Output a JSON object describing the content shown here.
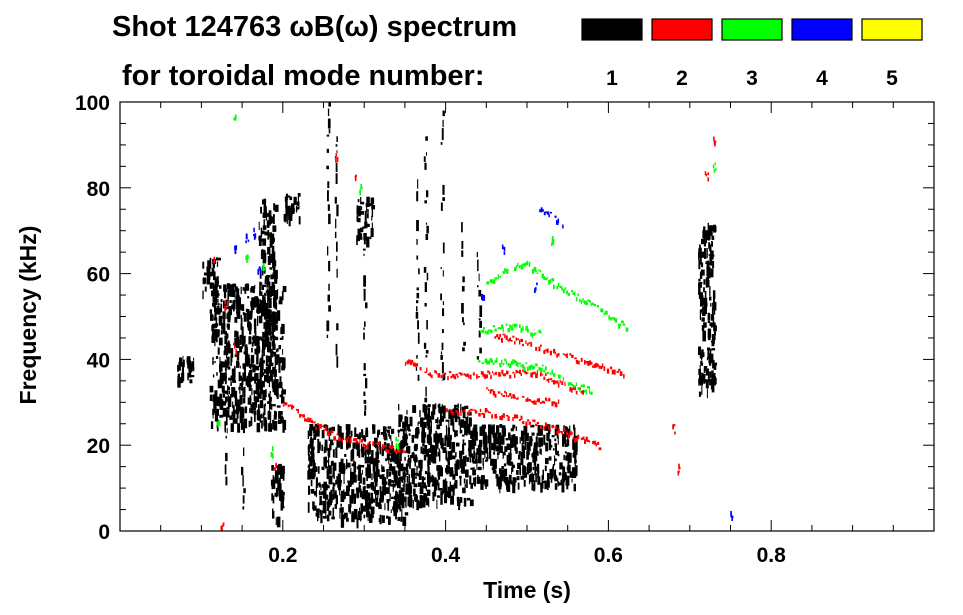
{
  "chart_data": {
    "type": "heatmap",
    "title": "Shot 124763 ωB(ω) spectrum",
    "subtitle": "for toroidal mode number:",
    "xlabel": "Time (s)",
    "ylabel": "Frequency (kHz)",
    "xlim": [
      0.0,
      1.0
    ],
    "ylim": [
      0,
      100
    ],
    "x_ticks": [
      0.2,
      0.4,
      0.6,
      0.8
    ],
    "x_tick_labels": [
      "0.2",
      "0.4",
      "0.6",
      "0.8"
    ],
    "y_ticks": [
      0,
      20,
      40,
      60,
      80,
      100
    ],
    "y_tick_labels": [
      "0",
      "20",
      "40",
      "60",
      "80",
      "100"
    ],
    "grid": false,
    "legend_placement": "top-right",
    "legend": [
      {
        "label": "1",
        "color": "#000000"
      },
      {
        "label": "2",
        "color": "#ff0000"
      },
      {
        "label": "3",
        "color": "#00ff00"
      },
      {
        "label": "4",
        "color": "#0000ff"
      },
      {
        "label": "5",
        "color": "#ffff00"
      }
    ],
    "series": [
      {
        "mode": 1,
        "color": "#000000",
        "blobs": [
          {
            "t": [
              0.07,
              0.09
            ],
            "f": [
              35,
              41
            ]
          },
          {
            "t": [
              0.1,
              0.12
            ],
            "f": [
              56,
              64
            ]
          },
          {
            "t": [
              0.11,
              0.2
            ],
            "f": [
              25,
              58
            ]
          },
          {
            "t": [
              0.17,
              0.19
            ],
            "f": [
              44,
              78
            ]
          },
          {
            "t": [
              0.185,
              0.2
            ],
            "f": [
              3,
              16
            ]
          },
          {
            "t": [
              0.2,
              0.22
            ],
            "f": [
              73,
              79
            ]
          },
          {
            "t": [
              0.23,
              0.35
            ],
            "f": [
              3,
              25
            ]
          },
          {
            "t": [
              0.29,
              0.31
            ],
            "f": [
              68,
              78
            ]
          },
          {
            "t": [
              0.34,
              0.43
            ],
            "f": [
              7,
              30
            ]
          },
          {
            "t": [
              0.43,
              0.56
            ],
            "f": [
              11,
              25
            ]
          },
          {
            "t": [
              0.71,
              0.73
            ],
            "f": [
              32,
              72
            ]
          }
        ],
        "streaks": [
          {
            "t": 0.255,
            "f": [
              45,
              100
            ]
          },
          {
            "t": 0.265,
            "f": [
              38,
              92
            ]
          },
          {
            "t": 0.365,
            "f": [
              30,
              82
            ]
          },
          {
            "t": 0.375,
            "f": [
              30,
              92
            ]
          },
          {
            "t": 0.395,
            "f": [
              35,
              98
            ]
          },
          {
            "t": 0.42,
            "f": [
              30,
              72
            ]
          },
          {
            "t": 0.44,
            "f": [
              38,
              65
            ]
          },
          {
            "t": 0.3,
            "f": [
              22,
              68
            ]
          },
          {
            "t": 0.15,
            "f": [
              5,
              40
            ]
          },
          {
            "t": 0.13,
            "f": [
              10,
              45
            ]
          }
        ]
      },
      {
        "mode": 2,
        "color": "#ff0000",
        "bands": [
          [
            [
              0.2,
              30
            ],
            [
              0.24,
              25
            ],
            [
              0.27,
              22
            ],
            [
              0.32,
              20
            ],
            [
              0.35,
              18.5
            ]
          ],
          [
            [
              0.35,
              40
            ],
            [
              0.38,
              37
            ],
            [
              0.42,
              36.5
            ],
            [
              0.48,
              37
            ],
            [
              0.51,
              37
            ],
            [
              0.55,
              34
            ],
            [
              0.57,
              32.5
            ]
          ],
          [
            [
              0.45,
              33
            ],
            [
              0.5,
              31
            ],
            [
              0.54,
              30
            ]
          ],
          [
            [
              0.4,
              28
            ],
            [
              0.45,
              28
            ],
            [
              0.5,
              26
            ],
            [
              0.55,
              23
            ],
            [
              0.59,
              20
            ]
          ],
          [
            [
              0.46,
              46
            ],
            [
              0.5,
              44
            ],
            [
              0.55,
              41
            ],
            [
              0.6,
              38
            ],
            [
              0.62,
              37
            ]
          ]
        ],
        "spots": [
          {
            "t": 0.29,
            "f": 83
          },
          {
            "t": 0.14,
            "f": 43
          },
          {
            "t": 0.19,
            "f": 15
          },
          {
            "t": 0.125,
            "f": 2
          },
          {
            "t": 0.72,
            "f": 83
          },
          {
            "t": 0.73,
            "f": 91
          },
          {
            "t": 0.685,
            "f": 15
          },
          {
            "t": 0.68,
            "f": 24
          },
          {
            "t": 0.265,
            "f": 88
          },
          {
            "t": 0.115,
            "f": 63
          },
          {
            "t": 0.13,
            "f": 53
          }
        ]
      },
      {
        "mode": 3,
        "color": "#00ff00",
        "bands": [
          [
            [
              0.45,
              58
            ],
            [
              0.48,
              62
            ],
            [
              0.5,
              62.5
            ],
            [
              0.54,
              57
            ],
            [
              0.58,
              53
            ],
            [
              0.61,
              49
            ],
            [
              0.625,
              47.5
            ]
          ],
          [
            [
              0.44,
              47
            ],
            [
              0.48,
              48
            ],
            [
              0.52,
              46
            ]
          ],
          [
            [
              0.44,
              40
            ],
            [
              0.48,
              39.5
            ],
            [
              0.52,
              38
            ],
            [
              0.56,
              34
            ],
            [
              0.58,
              33
            ]
          ]
        ],
        "spots": [
          {
            "t": 0.14,
            "f": 97
          },
          {
            "t": 0.155,
            "f": 64
          },
          {
            "t": 0.175,
            "f": 62
          },
          {
            "t": 0.73,
            "f": 85
          },
          {
            "t": 0.295,
            "f": 80
          },
          {
            "t": 0.34,
            "f": 21
          },
          {
            "t": 0.12,
            "f": 25
          },
          {
            "t": 0.185,
            "f": 19
          },
          {
            "t": 0.53,
            "f": 68
          }
        ]
      },
      {
        "mode": 4,
        "color": "#0000ff",
        "bands": [
          [
            [
              0.515,
              75
            ],
            [
              0.53,
              73.5
            ],
            [
              0.545,
              71
            ]
          ]
        ],
        "spots": [
          {
            "t": 0.14,
            "f": 66
          },
          {
            "t": 0.155,
            "f": 68.5
          },
          {
            "t": 0.165,
            "f": 70
          },
          {
            "t": 0.47,
            "f": 66
          },
          {
            "t": 0.51,
            "f": 57
          },
          {
            "t": 0.445,
            "f": 55
          },
          {
            "t": 0.17,
            "f": 61
          },
          {
            "t": 0.75,
            "f": 4
          }
        ]
      },
      {
        "mode": 5,
        "color": "#ffff00",
        "bands": [],
        "spots": []
      }
    ]
  }
}
